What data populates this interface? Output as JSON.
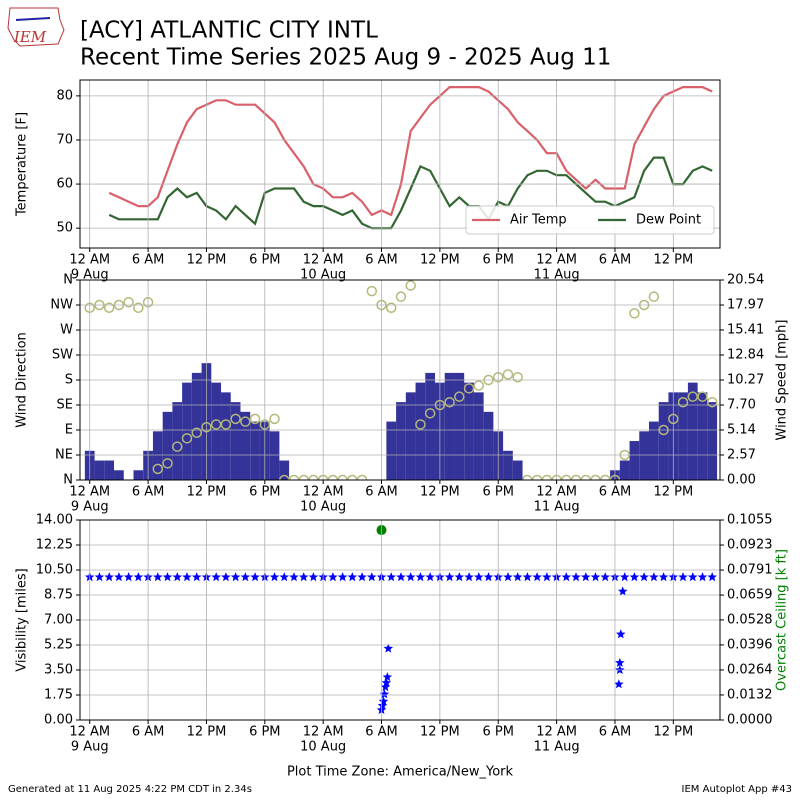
{
  "header": {
    "logo": "IEM",
    "title": "[ACY] ATLANTIC CITY INTL",
    "subtitle": "Recent Time Series 2025 Aug 9 - 2025 Aug 11"
  },
  "chart_data": [
    {
      "type": "line",
      "ylabel": "Temperature [F]",
      "grid": true,
      "legend": "lower right",
      "xlim": [
        -1,
        64.8
      ],
      "ylim": [
        45.5,
        83.6
      ],
      "yticks": [
        50,
        60,
        70,
        80
      ],
      "xticks": [
        {
          "value": 0,
          "label": "12 AM",
          "date": "9 Aug"
        },
        {
          "value": 6,
          "label": "6 AM"
        },
        {
          "value": 12,
          "label": "12 PM"
        },
        {
          "value": 18,
          "label": "6 PM"
        },
        {
          "value": 24,
          "label": "12 AM",
          "date": "10 Aug"
        },
        {
          "value": 30,
          "label": "6 AM"
        },
        {
          "value": 36,
          "label": "12 PM"
        },
        {
          "value": 42,
          "label": "6 PM"
        },
        {
          "value": 48,
          "label": "12 AM",
          "date": "11 Aug"
        },
        {
          "value": 54,
          "label": "6 AM"
        },
        {
          "value": 60,
          "label": "12 PM"
        }
      ],
      "x": [
        2,
        3,
        4,
        5,
        6,
        7,
        8,
        9,
        10,
        11,
        12,
        13,
        14,
        15,
        16,
        17,
        18,
        19,
        20,
        21,
        22,
        23,
        24,
        25,
        26,
        27,
        28,
        29,
        30,
        31,
        32,
        33,
        34,
        35,
        36,
        37,
        38,
        39,
        40,
        41,
        42,
        43,
        44,
        45,
        46,
        47,
        48,
        49,
        50,
        51,
        52,
        53,
        54,
        55,
        56,
        57,
        58,
        59,
        60,
        61,
        62,
        63,
        64
      ],
      "series": [
        {
          "name": "Air Temp",
          "color": "#d9606a",
          "values": [
            58,
            57,
            56,
            55,
            55,
            57,
            63,
            69,
            74,
            77,
            78,
            79,
            79,
            78,
            78,
            78,
            76,
            74,
            70,
            67,
            64,
            60,
            59,
            57,
            57,
            58,
            56,
            53,
            54,
            53,
            60,
            72,
            75,
            78,
            80,
            82,
            82,
            82,
            82,
            81,
            79,
            77,
            74,
            72,
            70,
            67,
            67,
            63,
            61,
            59,
            61,
            59,
            59,
            59,
            69,
            73,
            77,
            80,
            81,
            82,
            82,
            82,
            81
          ]
        },
        {
          "name": "Dew Point",
          "color": "#336633",
          "values": [
            53,
            52,
            52,
            52,
            52,
            52,
            57,
            59,
            57,
            58,
            55,
            54,
            52,
            55,
            53,
            51,
            58,
            59,
            59,
            59,
            56,
            55,
            55,
            54,
            53,
            54,
            51,
            50,
            50,
            50,
            54,
            59,
            64,
            63,
            59,
            55,
            57,
            55,
            55,
            52,
            56,
            55,
            59,
            62,
            63,
            63,
            62,
            62,
            60,
            58,
            56,
            56,
            55,
            56,
            57,
            63,
            66,
            66,
            60,
            60,
            63,
            64,
            63
          ]
        }
      ]
    },
    {
      "type": "combo",
      "ylabel": "Wind Direction",
      "y2label": "Wind Speed [mph]",
      "grid": true,
      "xlim": [
        -1,
        64.8
      ],
      "ylim": [
        0,
        360
      ],
      "yticks": [
        {
          "value": 0,
          "label": "N"
        },
        {
          "value": 45,
          "label": "NE"
        },
        {
          "value": 90,
          "label": "E"
        },
        {
          "value": 135,
          "label": "SE"
        },
        {
          "value": 180,
          "label": "S"
        },
        {
          "value": 225,
          "label": "SW"
        },
        {
          "value": 270,
          "label": "W"
        },
        {
          "value": 315,
          "label": "NW"
        },
        {
          "value": 360,
          "label": "N"
        }
      ],
      "y2lim": [
        0,
        20.54
      ],
      "y2ticks": [
        {
          "value": 0,
          "label": "0.00"
        },
        2.57,
        5.14,
        {
          "value": 7.7,
          "label": "7.70"
        },
        10.27,
        12.84,
        15.41,
        17.97,
        20.54
      ],
      "xticks": [
        {
          "value": 0,
          "label": "12 AM",
          "date": "9 Aug"
        },
        {
          "value": 6,
          "label": "6 AM"
        },
        {
          "value": 12,
          "label": "12 PM"
        },
        {
          "value": 18,
          "label": "6 PM"
        },
        {
          "value": 24,
          "label": "12 AM",
          "date": "10 Aug"
        },
        {
          "value": 30,
          "label": "6 AM"
        },
        {
          "value": 36,
          "label": "12 PM"
        },
        {
          "value": 42,
          "label": "6 PM"
        },
        {
          "value": 48,
          "label": "12 AM",
          "date": "11 Aug"
        },
        {
          "value": 54,
          "label": "6 AM"
        },
        {
          "value": 60,
          "label": "12 PM"
        }
      ],
      "x": [
        0,
        1,
        2,
        3,
        4,
        5,
        6,
        7,
        8,
        9,
        10,
        11,
        12,
        13,
        14,
        15,
        16,
        17,
        18,
        19,
        20,
        21,
        22,
        23,
        24,
        25,
        26,
        27,
        28,
        29,
        30,
        31,
        32,
        33,
        34,
        35,
        36,
        37,
        38,
        39,
        40,
        41,
        42,
        43,
        44,
        45,
        46,
        47,
        48,
        49,
        50,
        51,
        52,
        53,
        54,
        55,
        56,
        57,
        58,
        59,
        60,
        61,
        62,
        63,
        64
      ],
      "series": [
        {
          "type": "bar",
          "axis": "y2",
          "color": "#333399",
          "values": [
            3,
            2,
            2,
            1,
            0,
            1,
            3,
            5,
            7,
            8,
            10,
            11,
            12,
            10,
            9,
            8,
            7,
            6,
            6,
            5,
            2,
            0,
            0,
            0,
            0,
            0,
            0,
            0,
            0,
            0,
            0,
            6,
            8,
            9,
            10,
            11,
            10,
            11,
            11,
            10,
            9,
            7,
            5,
            3,
            2,
            0,
            0,
            0,
            0,
            0,
            0,
            0,
            0,
            0,
            1,
            2,
            4,
            5,
            6,
            8,
            9,
            9,
            10,
            9,
            8
          ]
        },
        {
          "type": "scatter",
          "marker": "circle",
          "color": "#b5b87a",
          "values": [
            310,
            315,
            310,
            315,
            320,
            310,
            320,
            20,
            30,
            60,
            75,
            85,
            95,
            100,
            100,
            110,
            105,
            110,
            100,
            110,
            0,
            0,
            0,
            0,
            0,
            0,
            0,
            0,
            0,
            340,
            315,
            310,
            330,
            350,
            100,
            120,
            135,
            140,
            150,
            165,
            170,
            180,
            185,
            190,
            185,
            0,
            0,
            0,
            0,
            0,
            0,
            0,
            0,
            0,
            0,
            45,
            300,
            315,
            330,
            90,
            110,
            140,
            150,
            150,
            140
          ]
        }
      ]
    },
    {
      "type": "combo",
      "ylabel": "Visibility [miles]",
      "y2label": "Overcast Ceiling [k ft]",
      "y2label_color": "#008000",
      "grid": true,
      "xlabel": "Plot Time Zone: America/New_York",
      "xlim": [
        -1,
        64.8
      ],
      "ylim": [
        0,
        14
      ],
      "yticks": [
        {
          "value": 0,
          "label": "0.00"
        },
        1.75,
        {
          "value": 3.5,
          "label": "3.50"
        },
        5.25,
        {
          "value": 7,
          "label": "7.00"
        },
        8.75,
        {
          "value": 10.5,
          "label": "10.50"
        },
        12.25,
        {
          "value": 14,
          "label": "14.00"
        }
      ],
      "y2lim": [
        0,
        0.1055
      ],
      "y2ticks": [
        {
          "value": 0,
          "label": "0.0000"
        },
        0.0132,
        0.0264,
        0.0396,
        0.0528,
        0.0659,
        0.0791,
        0.0923,
        0.1055
      ],
      "xticks": [
        {
          "value": 0,
          "label": "12 AM",
          "date": "9 Aug"
        },
        {
          "value": 6,
          "label": "6 AM"
        },
        {
          "value": 12,
          "label": "12 PM"
        },
        {
          "value": 18,
          "label": "6 PM"
        },
        {
          "value": 24,
          "label": "12 AM",
          "date": "10 Aug"
        },
        {
          "value": 30,
          "label": "6 AM"
        },
        {
          "value": 36,
          "label": "12 PM"
        },
        {
          "value": 42,
          "label": "6 PM"
        },
        {
          "value": 48,
          "label": "12 AM",
          "date": "11 Aug"
        },
        {
          "value": 54,
          "label": "6 AM"
        },
        {
          "value": 60,
          "label": "12 PM"
        }
      ],
      "series": [
        {
          "type": "scatter",
          "marker": "star",
          "color": "#0000ff",
          "x": [
            0,
            1,
            2,
            3,
            4,
            5,
            6,
            7,
            8,
            9,
            10,
            11,
            12,
            13,
            14,
            15,
            16,
            17,
            18,
            19,
            20,
            21,
            22,
            23,
            24,
            25,
            26,
            27,
            28,
            29,
            30,
            31,
            32,
            33,
            34,
            35,
            36,
            37,
            38,
            39,
            40,
            41,
            42,
            43,
            44,
            45,
            46,
            47,
            48,
            49,
            50,
            51,
            52,
            53,
            54,
            55,
            56,
            57,
            58,
            59,
            60,
            61,
            62,
            63,
            64,
            30.0,
            30.1,
            30.2,
            30.3,
            30.4,
            30.5,
            30.6,
            30.7,
            54.4,
            54.5,
            54.5,
            54.6,
            54.8
          ],
          "values": [
            10,
            10,
            10,
            10,
            10,
            10,
            10,
            10,
            10,
            10,
            10,
            10,
            10,
            10,
            10,
            10,
            10,
            10,
            10,
            10,
            10,
            10,
            10,
            10,
            10,
            10,
            10,
            10,
            10,
            10,
            10,
            10,
            10,
            10,
            10,
            10,
            10,
            10,
            10,
            10,
            10,
            10,
            10,
            10,
            10,
            10,
            10,
            10,
            10,
            10,
            10,
            10,
            10,
            10,
            10,
            10,
            10,
            10,
            10,
            10,
            10,
            10,
            10,
            10,
            10,
            0.7,
            1.0,
            1.3,
            1.8,
            2.3,
            2.6,
            3.0,
            5.0,
            2.5,
            3.5,
            4.0,
            6.0,
            9.0
          ]
        },
        {
          "type": "scatter",
          "marker": "dot",
          "axis": "y2",
          "color": "#008000",
          "x": [
            30.0
          ],
          "values": [
            0.1002
          ]
        }
      ]
    }
  ],
  "footer": {
    "generated": "Generated at 11 Aug 2025 4:22 PM CDT in 2.34s",
    "app": "IEM Autoplot App #43"
  }
}
